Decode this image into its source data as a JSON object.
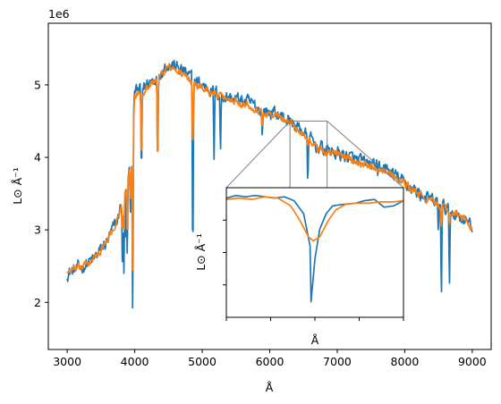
{
  "chart_data": [
    {
      "type": "line",
      "title": "",
      "xlabel": "Å",
      "ylabel": "L⊙ Å⁻¹",
      "y_offset_label": "1e6",
      "xlim": [
        2720,
        9280
      ],
      "ylim": [
        1350000.0,
        5850000.0
      ],
      "x_ticks": [
        3000,
        4000,
        5000,
        6000,
        7000,
        8000,
        9000
      ],
      "x_tick_labels": [
        "3000",
        "4000",
        "5000",
        "6000",
        "7000",
        "8000",
        "9000"
      ],
      "y_ticks": [
        2000000.0,
        3000000.0,
        4000000.0,
        5000000.0
      ],
      "y_tick_labels": [
        "2",
        "3",
        "4",
        "5"
      ],
      "grid": false,
      "series": [
        {
          "color": "#1f77b4",
          "anchors": [
            [
              3000,
              2400000.0
            ],
            [
              3200,
              2480000.0
            ],
            [
              3400,
              2600000.0
            ],
            [
              3600,
              2850000.0
            ],
            [
              3750,
              3150000.0
            ],
            [
              3850,
              3600000.0
            ],
            [
              3950,
              3900000.0
            ],
            [
              4000,
              4900000.0
            ],
            [
              4100,
              4950000.0
            ],
            [
              4300,
              5100000.0
            ],
            [
              4500,
              5300000.0
            ],
            [
              4700,
              5200000.0
            ],
            [
              4900,
              5050000.0
            ],
            [
              5100,
              4950000.0
            ],
            [
              5300,
              4850000.0
            ],
            [
              5500,
              4800000.0
            ],
            [
              5700,
              4750000.0
            ],
            [
              5900,
              4650000.0
            ],
            [
              6100,
              4600000.0
            ],
            [
              6300,
              4500000.0
            ],
            [
              6500,
              4350000.0
            ],
            [
              6700,
              4150000.0
            ],
            [
              6900,
              4080000.0
            ],
            [
              7100,
              4030000.0
            ],
            [
              7300,
              3950000.0
            ],
            [
              7500,
              3900000.0
            ],
            [
              7700,
              3850000.0
            ],
            [
              7900,
              3720000.0
            ],
            [
              8100,
              3580000.0
            ],
            [
              8300,
              3450000.0
            ],
            [
              8500,
              3350000.0
            ],
            [
              8700,
              3250000.0
            ],
            [
              8900,
              3150000.0
            ],
            [
              9000,
              3000000.0
            ]
          ],
          "dips": [
            [
              3820,
              2200000.0
            ],
            [
              3840,
              2400000.0
            ],
            [
              3860,
              2600000.0
            ],
            [
              3890,
              2500000.0
            ],
            [
              3935,
              3200000.0
            ],
            [
              3970,
              1550000.0
            ],
            [
              4100,
              3600000.0
            ],
            [
              4340,
              3700000.0
            ],
            [
              4860,
              2150000.0
            ],
            [
              5175,
              3900000.0
            ],
            [
              5270,
              4000000.0
            ],
            [
              5890,
              4250000.0
            ],
            [
              6563,
              3550000.0
            ],
            [
              7600,
              3750000.0
            ],
            [
              8498,
              2950000.0
            ],
            [
              8542,
              1950000.0
            ],
            [
              8662,
              2100000.0
            ]
          ],
          "noise": 110000
        },
        {
          "color": "#ff7f0e",
          "anchors": [
            [
              3000,
              2420000.0
            ],
            [
              3200,
              2480000.0
            ],
            [
              3400,
              2600000.0
            ],
            [
              3600,
              2850000.0
            ],
            [
              3750,
              3150000.0
            ],
            [
              3850,
              3500000.0
            ],
            [
              3950,
              3850000.0
            ],
            [
              4000,
              4850000.0
            ],
            [
              4100,
              4900000.0
            ],
            [
              4300,
              5050000.0
            ],
            [
              4500,
              5250000.0
            ],
            [
              4700,
              5150000.0
            ],
            [
              4900,
              5000000.0
            ],
            [
              5100,
              4920000.0
            ],
            [
              5300,
              4820000.0
            ],
            [
              5500,
              4780000.0
            ],
            [
              5700,
              4720000.0
            ],
            [
              5900,
              4620000.0
            ],
            [
              6100,
              4570000.0
            ],
            [
              6300,
              4480000.0
            ],
            [
              6500,
              4320000.0
            ],
            [
              6700,
              4130000.0
            ],
            [
              6900,
              4060000.0
            ],
            [
              7100,
              4020000.0
            ],
            [
              7300,
              3940000.0
            ],
            [
              7500,
              3880000.0
            ],
            [
              7700,
              3830000.0
            ],
            [
              7900,
              3700000.0
            ],
            [
              8100,
              3560000.0
            ],
            [
              8300,
              3440000.0
            ],
            [
              8500,
              3340000.0
            ],
            [
              8700,
              3240000.0
            ],
            [
              8900,
              3140000.0
            ],
            [
              9000,
              3000000.0
            ]
          ],
          "dips": [
            [
              3820,
              2900000.0
            ],
            [
              3840,
              3000000.0
            ],
            [
              3890,
              2900000.0
            ],
            [
              3935,
              3400000.0
            ],
            [
              3970,
              2150000.0
            ],
            [
              4100,
              3800000.0
            ],
            [
              4340,
              3700000.0
            ],
            [
              4860,
              3950000.0
            ],
            [
              5890,
              4400000.0
            ],
            [
              6563,
              4150000.0
            ],
            [
              8542,
              3000000.0
            ],
            [
              8662,
              3050000.0
            ]
          ],
          "noise": 60000
        }
      ]
    },
    {
      "type": "line",
      "title": "",
      "xlabel": "Å",
      "ylabel": "L⊙ Å⁻¹",
      "xlim": [
        6300,
        6850
      ],
      "ylim": [
        3500000.0,
        4500000.0
      ],
      "x_ticks": [
        6300,
        6437.5,
        6575,
        6712.5,
        6850
      ],
      "y_ticks": [
        3750000.0,
        4000000.0,
        4250000.0
      ],
      "series": [
        {
          "color": "#1f77b4",
          "x": [
            6300,
            6330,
            6360,
            6390,
            6420,
            6450,
            6480,
            6510,
            6540,
            6560,
            6563,
            6575,
            6590,
            6610,
            6630,
            6660,
            6700,
            6730,
            6760,
            6790,
            6820,
            6850
          ],
          "y": [
            4420000.0,
            4440000.0,
            4430000.0,
            4440000.0,
            4430000.0,
            4420000.0,
            4430000.0,
            4400000.0,
            4300000.0,
            4050000.0,
            3620000.0,
            3950000.0,
            4180000.0,
            4300000.0,
            4360000.0,
            4370000.0,
            4380000.0,
            4400000.0,
            4410000.0,
            4350000.0,
            4360000.0,
            4400000.0
          ]
        },
        {
          "color": "#ff7f0e",
          "x": [
            6300,
            6340,
            6380,
            6420,
            6460,
            6500,
            6530,
            6555,
            6570,
            6590,
            6615,
            6640,
            6670,
            6700,
            6740,
            6780,
            6820,
            6850
          ],
          "y": [
            4410000.0,
            4420000.0,
            4410000.0,
            4430000.0,
            4420000.0,
            4360000.0,
            4240000.0,
            4120000.0,
            4090000.0,
            4120000.0,
            4240000.0,
            4330000.0,
            4370000.0,
            4380000.0,
            4380000.0,
            4390000.0,
            4390000.0,
            4400000.0
          ]
        }
      ]
    }
  ]
}
